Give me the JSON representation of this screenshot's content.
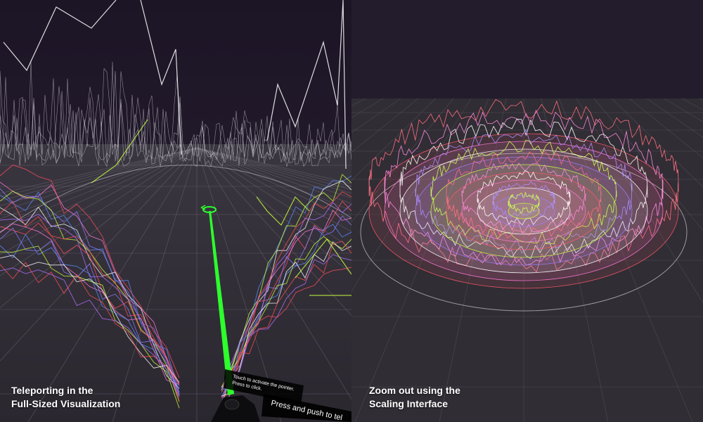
{
  "left_panel": {
    "caption_line1": "Teleporting in the",
    "caption_line2": "Full-Sized Visualization",
    "controller_hint": {
      "line1": "Touch to activate the pointer.",
      "line2": "Press to click.",
      "line3": "Press and push to tel"
    }
  },
  "right_panel": {
    "caption_line1": "Zoom out using the",
    "caption_line2": "Scaling Interface"
  },
  "colors": {
    "sky": "#201a29",
    "floor": "#2d2a31",
    "grid": "#6e6a74",
    "pointer": "#2dff2d",
    "rings": [
      "#ff5a6e",
      "#c8ff3c",
      "#a07cff",
      "#ffffff",
      "#ff7ad9"
    ]
  }
}
